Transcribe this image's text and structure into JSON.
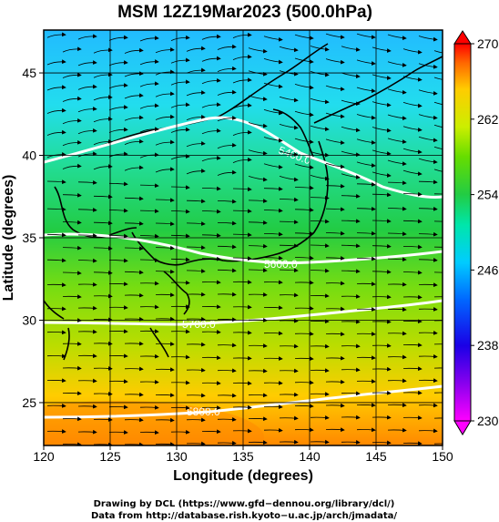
{
  "title": "MSM 12Z19Mar2023 (500.0hPa)",
  "xaxis": {
    "label": "Longitude (degrees)",
    "ticks": [
      120,
      125,
      130,
      135,
      140,
      145,
      150
    ],
    "tick_labels": [
      "120",
      "125",
      "130",
      "135",
      "140",
      "145",
      "150"
    ],
    "range": [
      120,
      150
    ]
  },
  "yaxis": {
    "label": "Latitude  (degrees)",
    "ticks": [
      25,
      30,
      35,
      40,
      45
    ],
    "tick_labels": [
      "25",
      "30",
      "35",
      "40",
      "45"
    ],
    "range": [
      22.4,
      47.6
    ]
  },
  "colorbar": {
    "min": 230,
    "max": 270,
    "ticks": [
      230,
      238,
      246,
      254,
      262,
      270
    ],
    "tick_labels": [
      "230",
      "238",
      "246",
      "254",
      "262",
      "270"
    ],
    "colors": [
      "#ff00ff",
      "#1a00e6",
      "#0066ff",
      "#00ccff",
      "#00e6aa",
      "#22cc44",
      "#66dd00",
      "#ccee00",
      "#ffcc00",
      "#ff6600",
      "#ff0000"
    ]
  },
  "contours": [
    {
      "value": 5400,
      "label": "5400.0"
    },
    {
      "value": 5600,
      "label": "5600.0"
    },
    {
      "value": 5700,
      "label": "5700.0"
    },
    {
      "value": 5800,
      "label": "5800.0"
    }
  ],
  "footer": {
    "line1": "Drawing by DCL (https://www.gfd−dennou.org/library/dcl/)",
    "line2": "Data from http://database.rish.kyoto−u.ac.jp/arch/jmadata/"
  }
}
